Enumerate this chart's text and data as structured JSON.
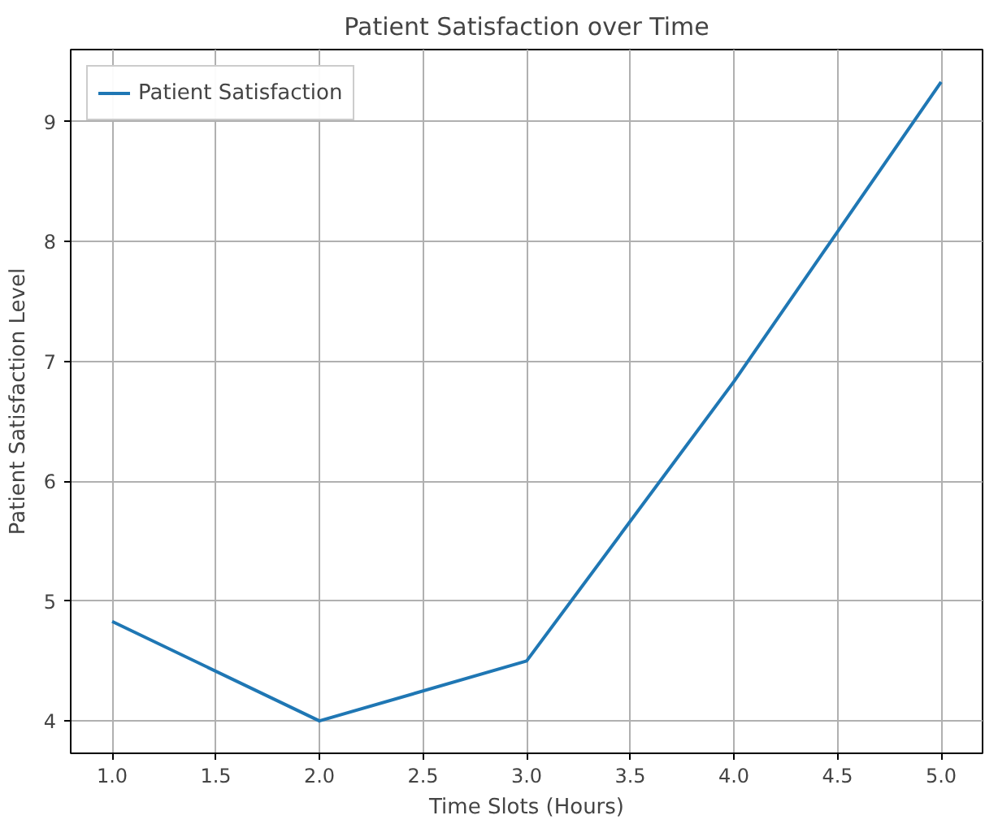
{
  "chart_data": {
    "type": "line",
    "title": "Patient Satisfaction over Time",
    "xlabel": "Time Slots (Hours)",
    "ylabel": "Patient Satisfaction Level",
    "x": [
      1,
      2,
      3,
      4,
      5
    ],
    "series": [
      {
        "name": "Patient Satisfaction",
        "color": "#1f77b4",
        "values": [
          4.83,
          4.0,
          4.5,
          6.83,
          9.33
        ]
      }
    ],
    "xlim": [
      0.8,
      5.2
    ],
    "ylim": [
      3.73,
      9.6
    ],
    "xticks": [
      {
        "value": 1,
        "label": "1.0"
      },
      {
        "value": 1.5,
        "label": "1.5"
      },
      {
        "value": 2,
        "label": "2.0"
      },
      {
        "value": 2.5,
        "label": "2.5"
      },
      {
        "value": 3,
        "label": "3.0"
      },
      {
        "value": 3.5,
        "label": "3.5"
      },
      {
        "value": 4,
        "label": "4.0"
      },
      {
        "value": 4.5,
        "label": "4.5"
      },
      {
        "value": 5,
        "label": "5.0"
      }
    ],
    "yticks": [
      4,
      5,
      6,
      7,
      8,
      9
    ],
    "grid": true,
    "legend": "top left",
    "line_style": "solid",
    "marker": "none"
  }
}
